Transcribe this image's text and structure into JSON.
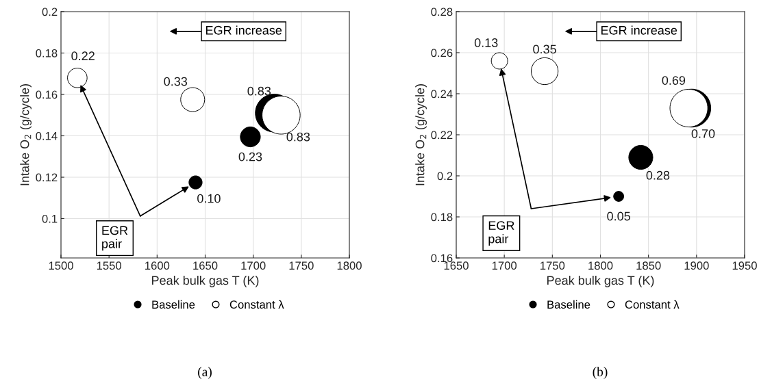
{
  "chart_data": [
    {
      "type": "bubble",
      "xlabel": "Peak bulk gas T (K)",
      "ylabel": "Intake O$_{2}$ (g/cycle)",
      "xlim": [
        1500,
        1800
      ],
      "xticks": [
        1500,
        1550,
        1600,
        1650,
        1700,
        1750,
        1800
      ],
      "ylim": [
        0.081,
        0.2
      ],
      "yticks": [
        0.1,
        0.12,
        0.14,
        0.16,
        0.18,
        0.2
      ],
      "grid": true,
      "legend": "bottom",
      "annotations": [
        "EGR increase",
        "EGR pair",
        "(a)"
      ],
      "series": [
        {
          "name": "Baseline",
          "color": "#000000",
          "x": [
            1640,
            1697,
            1722
          ],
          "values": [
            0.1175,
            0.1395,
            0.151
          ],
          "sizes": [
            0.1,
            0.23,
            0.83
          ],
          "value_labels": [
            "0.10",
            "0.23",
            "0.83"
          ]
        },
        {
          "name": "Constant λ",
          "color": "#ffffff",
          "x": [
            1517,
            1637,
            1729
          ],
          "values": [
            0.168,
            0.1575,
            0.15
          ],
          "sizes": [
            0.22,
            0.33,
            0.83
          ],
          "value_labels": [
            "0.22",
            "0.33",
            "0.83"
          ]
        }
      ]
    },
    {
      "type": "bubble",
      "xlabel": "Peak bulk gas T (K)",
      "ylabel": "Intake O$_{2}$ (g/cycle)",
      "xlim": [
        1650,
        1950
      ],
      "xticks": [
        1650,
        1700,
        1750,
        1800,
        1850,
        1900,
        1950
      ],
      "ylim": [
        0.16,
        0.28
      ],
      "yticks": [
        0.16,
        0.18,
        0.2,
        0.22,
        0.24,
        0.26,
        0.28
      ],
      "grid": true,
      "legend": "bottom",
      "annotations": [
        "EGR increase",
        "EGR pair",
        "(b)"
      ],
      "series": [
        {
          "name": "Baseline",
          "color": "#000000",
          "x": [
            1819,
            1842,
            1895
          ],
          "values": [
            0.19,
            0.209,
            0.233
          ],
          "sizes": [
            0.05,
            0.28,
            0.7
          ],
          "value_labels": [
            "0.05",
            "0.28",
            "0.70"
          ]
        },
        {
          "name": "Constant λ",
          "color": "#ffffff",
          "x": [
            1695,
            1742,
            1892
          ],
          "values": [
            0.256,
            0.251,
            0.233
          ],
          "sizes": [
            0.13,
            0.35,
            0.69
          ],
          "value_labels": [
            "0.13",
            "0.35",
            "0.69"
          ]
        }
      ]
    }
  ]
}
